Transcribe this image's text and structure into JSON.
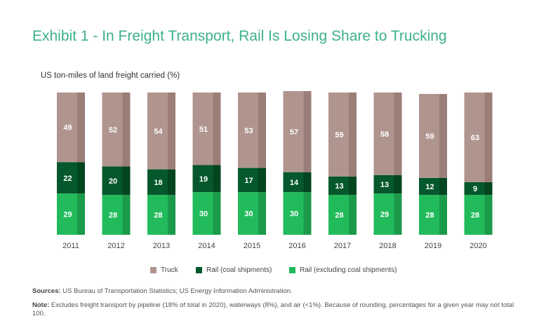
{
  "title": "Exhibit 1 - In Freight Transport, Rail Is Losing Share to Trucking",
  "sources_label": "Sources:",
  "sources_text": " US Bureau of Transportation Statistics; US Energy Information Administration.",
  "note_label": "Note:",
  "note_text": " Excludes freight transport by pipeline (18% of total in 2020), waterways (8%), and air (<1%). Because of rounding, percentages for a given year may not total 100.",
  "colors": {
    "truck": "#b0958f",
    "truck_side": "#9b7e77",
    "coal": "#04582b",
    "coal_side": "#03451f",
    "rail": "#22bb5c",
    "rail_side": "#1b9a4a",
    "title": "#3db08a"
  },
  "chart_data": {
    "type": "bar",
    "stacked": true,
    "title": "Exhibit 1 - In Freight Transport, Rail Is Losing Share to Trucking",
    "ylabel": "US ton-miles of land freight carried (%)",
    "ylim": [
      0,
      100
    ],
    "grid": false,
    "legend_position": "bottom",
    "categories": [
      "2011",
      "2012",
      "2013",
      "2014",
      "2015",
      "2016",
      "2017",
      "2018",
      "2019",
      "2020"
    ],
    "series": [
      {
        "name": "Rail (excluding coal shipments)",
        "key": "rail",
        "values": [
          29,
          28,
          28,
          30,
          30,
          30,
          28,
          29,
          28,
          28
        ]
      },
      {
        "name": "Rail (coal shipments)",
        "key": "coal",
        "values": [
          22,
          20,
          18,
          19,
          17,
          14,
          13,
          13,
          12,
          9
        ]
      },
      {
        "name": "Truck",
        "key": "truck",
        "values": [
          49,
          52,
          54,
          51,
          53,
          57,
          59,
          58,
          59,
          63
        ]
      }
    ],
    "legend": [
      {
        "name": "Truck",
        "key": "truck"
      },
      {
        "name": "Rail (coal shipments)",
        "key": "coal"
      },
      {
        "name": "Rail (excluding coal shipments)",
        "key": "rail"
      }
    ]
  }
}
